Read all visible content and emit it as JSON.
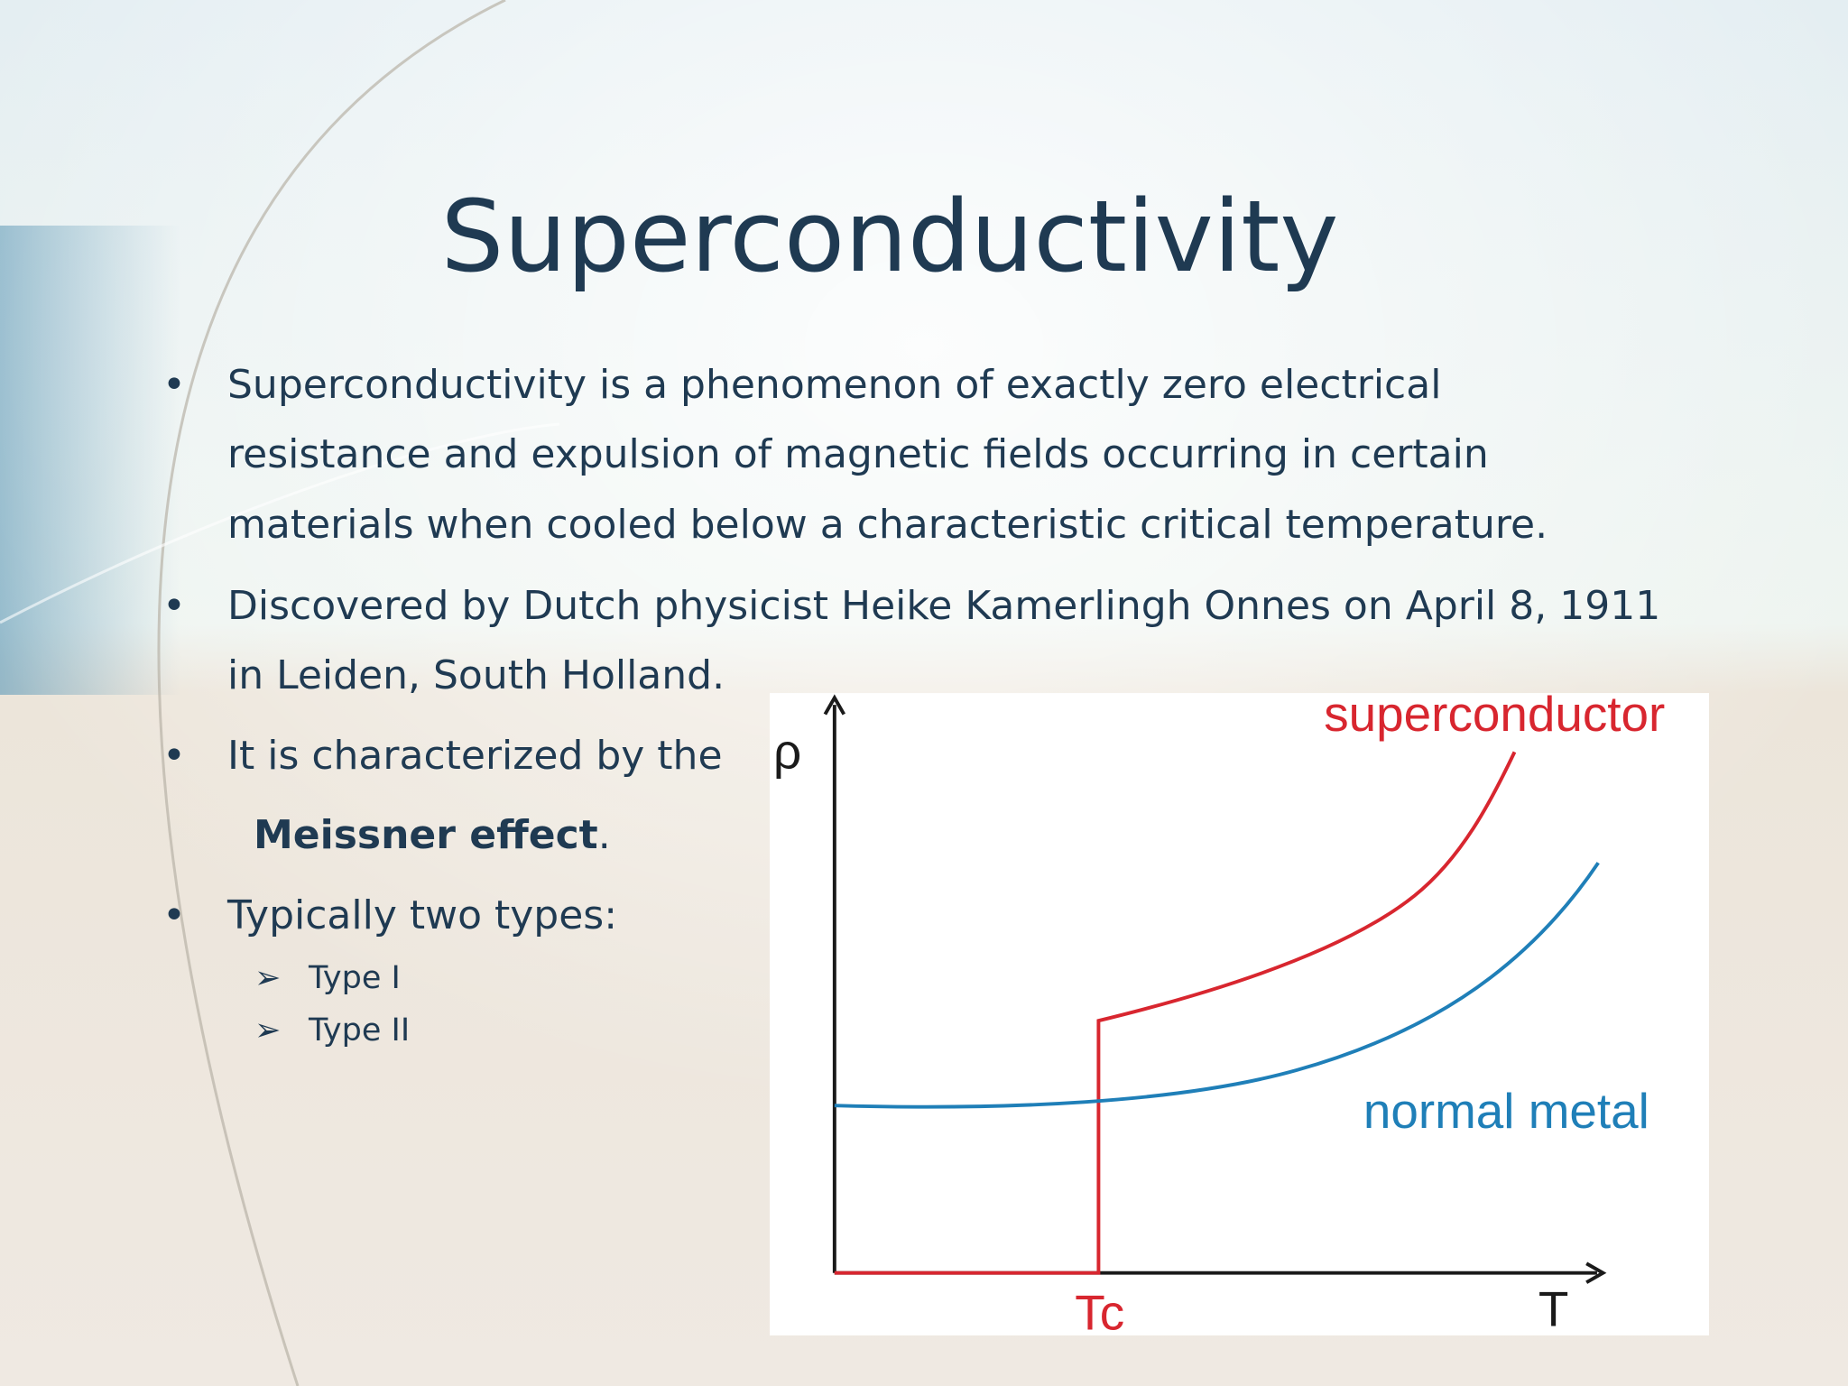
{
  "title": "Superconductivity",
  "bullets": [
    {
      "lines": [
        "Superconductivity is a phenomenon of exactly zero electrical",
        "resistance and expulsion of magnetic fields occurring in certain",
        "materials when cooled below a characteristic critical temperature."
      ]
    },
    {
      "lines": [
        "Discovered by Dutch physicist Heike Kamerlingh Onnes on April 8, 1911",
        "in Leiden, South Holland."
      ]
    },
    {
      "parts": [
        "It is characterized by the",
        "Meissner effect",
        "."
      ]
    },
    {
      "lines": [
        "Typically two types:"
      ],
      "sub": [
        "Type I",
        "Type II"
      ]
    }
  ],
  "diagram": {
    "y_axis": "ρ",
    "x_axis": "T",
    "tc": "Tc",
    "curves": [
      "superconductor",
      "normal metal"
    ]
  }
}
